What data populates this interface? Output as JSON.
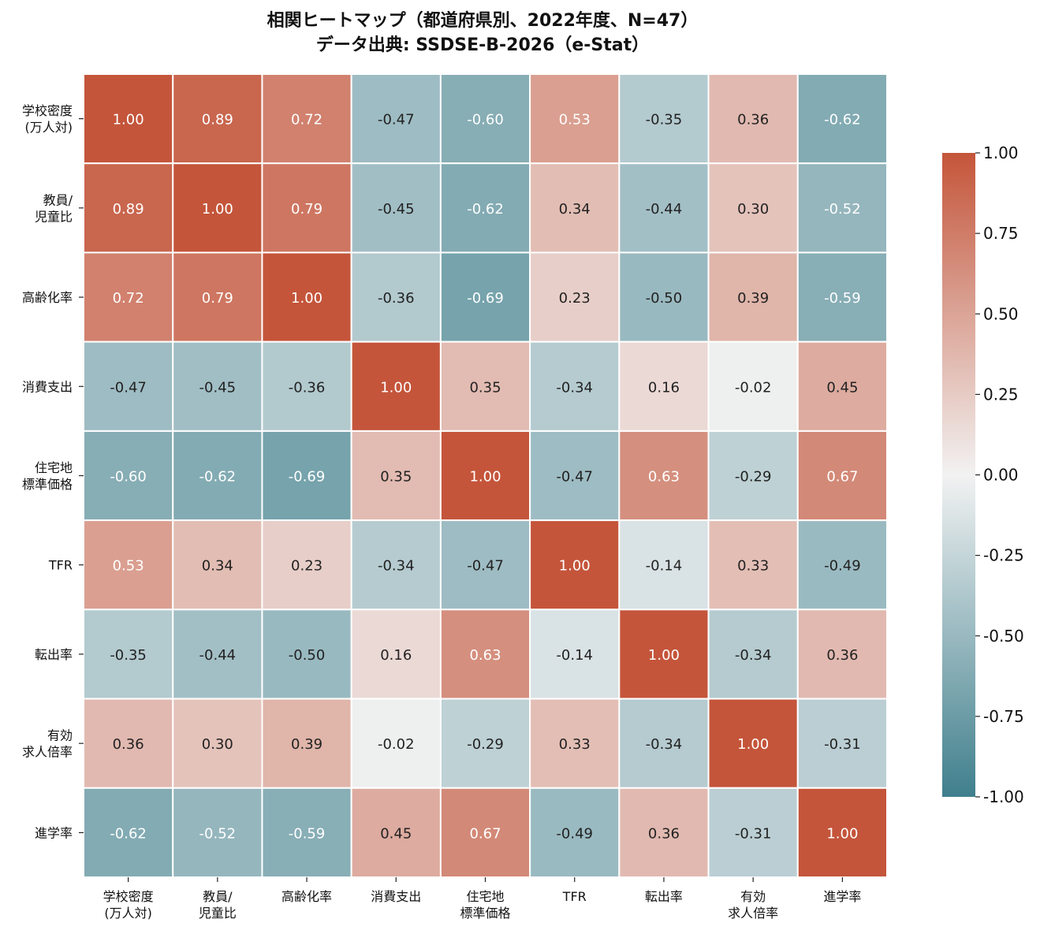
{
  "chart_data": {
    "type": "heatmap",
    "title": "相関ヒートマップ（都道府県別、2022年度、N=47）",
    "subtitle": "データ出典: SSDSE-B-2026（e-Stat）",
    "labels": [
      [
        "学校密度",
        "(万人対)"
      ],
      [
        "教員/",
        "児童比"
      ],
      [
        "高齢化率"
      ],
      [
        "消費支出"
      ],
      [
        "住宅地",
        "標準価格"
      ],
      [
        "TFR"
      ],
      [
        "転出率"
      ],
      [
        "有効",
        "求人倍率"
      ],
      [
        "進学率"
      ]
    ],
    "values": [
      [
        1.0,
        0.89,
        0.72,
        -0.47,
        -0.6,
        0.53,
        -0.35,
        0.36,
        -0.62
      ],
      [
        0.89,
        1.0,
        0.79,
        -0.45,
        -0.62,
        0.34,
        -0.44,
        0.3,
        -0.52
      ],
      [
        0.72,
        0.79,
        1.0,
        -0.36,
        -0.69,
        0.23,
        -0.5,
        0.39,
        -0.59
      ],
      [
        -0.47,
        -0.45,
        -0.36,
        1.0,
        0.35,
        -0.34,
        0.16,
        -0.02,
        0.45
      ],
      [
        -0.6,
        -0.62,
        -0.69,
        0.35,
        1.0,
        -0.47,
        0.63,
        -0.29,
        0.67
      ],
      [
        0.53,
        0.34,
        0.23,
        -0.34,
        -0.47,
        1.0,
        -0.14,
        0.33,
        -0.49
      ],
      [
        -0.35,
        -0.44,
        -0.5,
        0.16,
        0.63,
        -0.14,
        1.0,
        -0.34,
        0.36
      ],
      [
        0.36,
        0.3,
        0.39,
        -0.02,
        -0.29,
        0.33,
        -0.34,
        1.0,
        -0.31
      ],
      [
        -0.62,
        -0.52,
        -0.59,
        0.45,
        0.67,
        -0.49,
        0.36,
        -0.31,
        1.0
      ]
    ],
    "vmin": -1.0,
    "vmax": 1.0,
    "colorbar_ticks": [
      "1.00",
      "0.75",
      "0.50",
      "0.25",
      "0.00",
      "-0.25",
      "-0.50",
      "-0.75",
      "-1.00"
    ],
    "colors": {
      "negative": "#3f7f8d",
      "neutral": "#f2f2f2",
      "positive": "#c4553a"
    },
    "legend": "right"
  }
}
